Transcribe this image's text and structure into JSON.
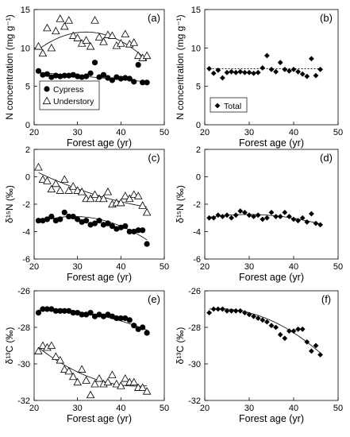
{
  "chart_data": [
    {
      "id": "a",
      "type": "scatter",
      "panel_label": "(a)",
      "xlabel": "Forest age (yr)",
      "ylabel": "N concentration (mg g⁻¹)",
      "xlim": [
        20,
        50
      ],
      "ylim": [
        0,
        15
      ],
      "xticks": [
        20,
        30,
        40,
        50
      ],
      "yticks": [
        0,
        5,
        10,
        15
      ],
      "grid": false,
      "legend": "bottom-left",
      "series": [
        {
          "name": "Cypress",
          "marker": "circle-filled",
          "x": [
            21,
            22,
            23,
            24,
            25,
            26,
            27,
            28,
            29,
            30,
            31,
            32,
            33,
            34,
            35,
            36,
            37,
            38,
            39,
            40,
            41,
            42,
            43,
            44,
            45,
            46
          ],
          "y": [
            7.0,
            6.5,
            6.6,
            6.2,
            6.4,
            6.3,
            6.4,
            6.4,
            6.5,
            6.3,
            6.2,
            6.3,
            6.7,
            8.1,
            6.2,
            6.5,
            6.1,
            5.8,
            6.2,
            6.0,
            6.1,
            6.0,
            5.6,
            7.8,
            5.5,
            5.5
          ]
        },
        {
          "name": "Understory",
          "marker": "triangle-open",
          "x": [
            21,
            22,
            23,
            24,
            25,
            26,
            27,
            28,
            29,
            30,
            31,
            32,
            33,
            34,
            35,
            36,
            37,
            38,
            39,
            40,
            41,
            42,
            43,
            44,
            45,
            46
          ],
          "y": [
            10.2,
            9.3,
            12.6,
            10.0,
            12.2,
            13.8,
            12.8,
            13.6,
            11.6,
            11.3,
            10.6,
            11.0,
            10.2,
            13.6,
            11.4,
            10.8,
            11.7,
            11.6,
            10.3,
            10.6,
            11.8,
            10.5,
            10.7,
            9.0,
            8.7,
            9.0
          ]
        }
      ],
      "trend_lines": [
        {
          "series": "Cypress",
          "kind": "linear",
          "x": [
            21,
            46
          ],
          "y": [
            6.8,
            5.6
          ]
        },
        {
          "series": "Understory",
          "kind": "quadratic",
          "x": [
            21,
            34,
            46
          ],
          "y": [
            9.8,
            12.0,
            8.4
          ]
        }
      ]
    },
    {
      "id": "b",
      "type": "scatter",
      "panel_label": "(b)",
      "xlabel": "Forest age (yr)",
      "ylabel": "N concentration (mg g⁻¹)",
      "xlim": [
        20,
        50
      ],
      "ylim": [
        0,
        15
      ],
      "xticks": [
        20,
        30,
        40,
        50
      ],
      "yticks": [
        0,
        5,
        10,
        15
      ],
      "grid": false,
      "legend": "bottom-left",
      "series": [
        {
          "name": "Total",
          "marker": "diamond-filled",
          "x": [
            21,
            22,
            23,
            24,
            25,
            26,
            27,
            28,
            29,
            30,
            31,
            32,
            33,
            34,
            35,
            36,
            37,
            38,
            39,
            40,
            41,
            42,
            43,
            44,
            45,
            46
          ],
          "y": [
            7.3,
            6.7,
            7.1,
            6.1,
            6.8,
            6.9,
            6.8,
            6.9,
            6.8,
            6.8,
            6.7,
            6.8,
            7.4,
            9.0,
            7.2,
            6.9,
            8.1,
            7.2,
            7.0,
            7.2,
            6.9,
            6.6,
            6.3,
            8.6,
            6.4,
            7.2
          ]
        }
      ],
      "trend_lines": [
        {
          "series": "Total",
          "kind": "flat-dotted",
          "x": [
            21,
            46
          ],
          "y": [
            7.3,
            7.3
          ]
        }
      ]
    },
    {
      "id": "c",
      "type": "scatter",
      "panel_label": "(c)",
      "xlabel": "Forest age (yr)",
      "ylabel": "δ¹⁵N (‰)",
      "xlim": [
        20,
        50
      ],
      "ylim": [
        -6,
        2
      ],
      "xticks": [
        20,
        30,
        40,
        50
      ],
      "yticks": [
        -6,
        -4,
        -2,
        0,
        2
      ],
      "grid": false,
      "series": [
        {
          "name": "Cypress",
          "marker": "circle-filled",
          "x": [
            21,
            22,
            23,
            24,
            25,
            26,
            27,
            28,
            29,
            30,
            31,
            32,
            33,
            34,
            35,
            36,
            37,
            38,
            39,
            40,
            41,
            42,
            43,
            44,
            45,
            46
          ],
          "y": [
            -3.2,
            -3.2,
            -3.1,
            -2.9,
            -3.2,
            -3.1,
            -2.6,
            -2.9,
            -2.9,
            -3.1,
            -3.3,
            -3.2,
            -3.5,
            -3.4,
            -3.2,
            -3.5,
            -3.4,
            -3.6,
            -3.8,
            -3.7,
            -3.6,
            -4.0,
            -4.0,
            -3.9,
            -3.9,
            -4.9
          ]
        },
        {
          "name": "Understory",
          "marker": "triangle-open",
          "x": [
            21,
            22,
            23,
            24,
            25,
            26,
            27,
            28,
            29,
            30,
            31,
            32,
            33,
            34,
            35,
            36,
            37,
            38,
            39,
            40,
            41,
            42,
            43,
            44,
            45,
            46
          ],
          "y": [
            0.7,
            -0.2,
            -0.3,
            -0.9,
            -0.5,
            -1.0,
            -0.2,
            -1.0,
            -0.7,
            -1.0,
            -1.1,
            -1.6,
            -1.6,
            -1.3,
            -1.6,
            -1.6,
            -1.1,
            -2.0,
            -1.9,
            -1.9,
            -1.4,
            -1.6,
            -1.3,
            -1.4,
            -2.1,
            -2.6
          ]
        }
      ],
      "trend_lines": [
        {
          "series": "Cypress",
          "kind": "quadratic",
          "x": [
            21,
            30,
            46
          ],
          "y": [
            -3.3,
            -2.9,
            -4.6
          ]
        },
        {
          "series": "Understory",
          "kind": "curve",
          "x": [
            21,
            34,
            46
          ],
          "y": [
            0.3,
            -1.3,
            -2.2
          ]
        }
      ]
    },
    {
      "id": "d",
      "type": "scatter",
      "panel_label": "(d)",
      "xlabel": "Forest age (yr)",
      "ylabel": "δ¹⁵N (‰)",
      "xlim": [
        20,
        50
      ],
      "ylim": [
        -6,
        2
      ],
      "xticks": [
        20,
        30,
        40,
        50
      ],
      "yticks": [
        -6,
        -4,
        -2,
        0,
        2
      ],
      "grid": false,
      "series": [
        {
          "name": "Total",
          "marker": "diamond-filled",
          "x": [
            21,
            22,
            23,
            24,
            25,
            26,
            27,
            28,
            29,
            30,
            31,
            32,
            33,
            34,
            35,
            36,
            37,
            38,
            39,
            40,
            41,
            42,
            43,
            44,
            45,
            46
          ],
          "y": [
            -3.0,
            -3.0,
            -2.8,
            -2.9,
            -2.8,
            -3.0,
            -2.8,
            -2.5,
            -2.6,
            -2.8,
            -2.9,
            -2.8,
            -3.1,
            -3.0,
            -2.6,
            -2.9,
            -2.9,
            -2.6,
            -2.9,
            -3.1,
            -3.2,
            -3.0,
            -3.3,
            -2.7,
            -3.4,
            -3.5
          ]
        }
      ],
      "trend_lines": [
        {
          "series": "Total",
          "kind": "quadratic",
          "x": [
            21,
            29,
            46
          ],
          "y": [
            -2.95,
            -2.75,
            -3.45
          ]
        }
      ]
    },
    {
      "id": "e",
      "type": "scatter",
      "panel_label": "(e)",
      "xlabel": "Forest age (yr)",
      "ylabel": "δ¹³C (‰)",
      "xlim": [
        20,
        50
      ],
      "ylim": [
        -32,
        -26
      ],
      "xticks": [
        20,
        30,
        40,
        50
      ],
      "yticks": [
        -32,
        -30,
        -28,
        -26
      ],
      "grid": false,
      "series": [
        {
          "name": "Cypress",
          "marker": "circle-filled",
          "x": [
            21,
            22,
            23,
            24,
            25,
            26,
            27,
            28,
            29,
            30,
            31,
            32,
            33,
            34,
            35,
            36,
            37,
            38,
            39,
            40,
            41,
            42,
            43,
            44,
            45,
            46
          ],
          "y": [
            -27.2,
            -27.0,
            -27.0,
            -27.0,
            -27.1,
            -27.1,
            -27.1,
            -27.1,
            -27.2,
            -27.2,
            -27.3,
            -27.3,
            -27.2,
            -27.4,
            -27.3,
            -27.4,
            -27.3,
            -27.4,
            -27.5,
            -27.5,
            -27.5,
            -27.6,
            -27.9,
            -28.1,
            -28.0,
            -28.3
          ]
        },
        {
          "name": "Understory",
          "marker": "triangle-open",
          "x": [
            21,
            22,
            23,
            24,
            25,
            26,
            27,
            28,
            29,
            30,
            31,
            32,
            33,
            34,
            35,
            36,
            37,
            38,
            39,
            40,
            41,
            42,
            43,
            44,
            45,
            46
          ],
          "y": [
            -29.3,
            -29.0,
            -29.1,
            -29.0,
            -29.6,
            -29.8,
            -30.3,
            -30.4,
            -30.7,
            -31.0,
            -30.3,
            -30.9,
            -31.7,
            -31.1,
            -30.8,
            -31.1,
            -31.0,
            -30.6,
            -31.1,
            -31.2,
            -30.8,
            -31.0,
            -31.0,
            -31.3,
            -31.3,
            -31.5
          ]
        }
      ],
      "trend_lines": [
        {
          "series": "Cypress",
          "kind": "curve",
          "x": [
            21,
            36,
            46
          ],
          "y": [
            -27.05,
            -27.4,
            -28.15
          ]
        },
        {
          "series": "Understory",
          "kind": "quadratic",
          "x": [
            21,
            35,
            46
          ],
          "y": [
            -29.1,
            -30.9,
            -31.2
          ]
        }
      ]
    },
    {
      "id": "f",
      "type": "scatter",
      "panel_label": "(f)",
      "xlabel": "Forest age (yr)",
      "ylabel": "δ¹³C (‰)",
      "xlim": [
        20,
        50
      ],
      "ylim": [
        -32,
        -26
      ],
      "xticks": [
        20,
        30,
        40,
        50
      ],
      "yticks": [
        -32,
        -30,
        -28,
        -26
      ],
      "grid": false,
      "series": [
        {
          "name": "Total",
          "marker": "diamond-filled",
          "x": [
            21,
            22,
            23,
            24,
            25,
            26,
            27,
            28,
            29,
            30,
            31,
            32,
            33,
            34,
            35,
            36,
            37,
            38,
            39,
            40,
            41,
            42,
            43,
            44,
            45,
            46
          ],
          "y": [
            -27.2,
            -27.0,
            -27.0,
            -27.0,
            -27.1,
            -27.1,
            -27.1,
            -27.1,
            -27.2,
            -27.3,
            -27.4,
            -27.5,
            -27.6,
            -27.7,
            -27.9,
            -28.0,
            -28.4,
            -28.6,
            -28.2,
            -28.2,
            -28.1,
            -28.1,
            -28.8,
            -29.3,
            -29.0,
            -29.5
          ]
        }
      ],
      "trend_lines": [
        {
          "series": "Total",
          "kind": "curve",
          "x": [
            21,
            30,
            46
          ],
          "y": [
            -27.0,
            -27.2,
            -29.4
          ]
        }
      ]
    }
  ]
}
